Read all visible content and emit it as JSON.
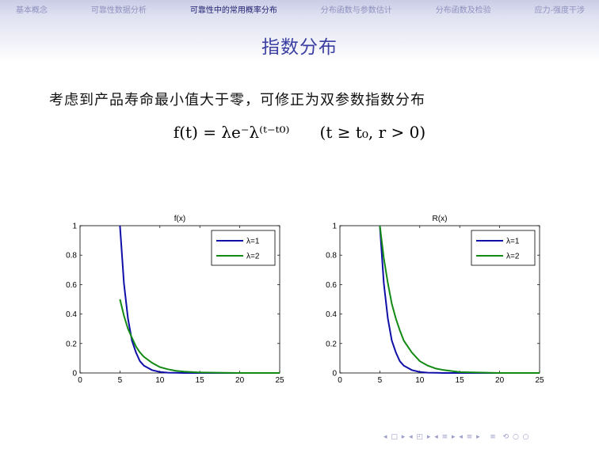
{
  "nav": {
    "items": [
      {
        "label": "基本概念",
        "active": false
      },
      {
        "label": "可靠性数据分析",
        "active": false
      },
      {
        "label": "可靠性中的常用概率分布",
        "active": true
      },
      {
        "label": "分布函数与参数估计",
        "active": false
      },
      {
        "label": "分布函数及检验",
        "active": false
      },
      {
        "label": "应力-强度干涉",
        "active": false
      }
    ]
  },
  "frame": {
    "title": "指数分布",
    "text": "考虑到产品寿命最小值大于零，可修正为双参数指数分布",
    "formula": "f(t) = λe⁻λ⁽ᵗ⁻ᵗ⁰⁾      (t ≥ t₀, r > 0)"
  },
  "colors": {
    "series1": "#1010a8",
    "series2": "#138a13",
    "accent": "#3c3fa2"
  },
  "chart_data": [
    {
      "type": "line",
      "title": "f(x)",
      "xlim": [
        0,
        25
      ],
      "ylim": [
        0,
        1
      ],
      "xticks": [
        0,
        5,
        10,
        15,
        20,
        25
      ],
      "yticks": [
        0,
        0.2,
        0.4,
        0.6,
        0.8,
        1
      ],
      "xtick_labels": [
        "0",
        "5",
        "10",
        "15",
        "20",
        "25"
      ],
      "ytick_labels": [
        "0",
        "0.2",
        "0.4",
        "0.6",
        "0.8",
        "1"
      ],
      "legend": "top-right",
      "x": [
        5,
        5.5,
        6,
        6.5,
        7,
        7.5,
        8,
        9,
        10,
        11,
        12,
        13,
        15,
        20,
        25
      ],
      "series": [
        {
          "name": "λ=1",
          "color": "#1010a8",
          "values": [
            1.0,
            0.61,
            0.37,
            0.22,
            0.14,
            0.08,
            0.05,
            0.02,
            0.007,
            0.002,
            0.001,
            0.0,
            0.0,
            0.0,
            0.0
          ]
        },
        {
          "name": "λ=2",
          "color": "#138a13",
          "values": [
            0.5,
            0.39,
            0.3,
            0.24,
            0.18,
            0.14,
            0.11,
            0.07,
            0.04,
            0.025,
            0.015,
            0.009,
            0.003,
            0.0,
            0.0
          ]
        }
      ]
    },
    {
      "type": "line",
      "title": "R(x)",
      "xlim": [
        0,
        25
      ],
      "ylim": [
        0,
        1
      ],
      "xticks": [
        0,
        5,
        10,
        15,
        20,
        25
      ],
      "yticks": [
        0,
        0.2,
        0.4,
        0.6,
        0.8,
        1
      ],
      "xtick_labels": [
        "0",
        "5",
        "10",
        "15",
        "20",
        "25"
      ],
      "ytick_labels": [
        "0",
        "0.2",
        "0.4",
        "0.6",
        "0.8",
        "1"
      ],
      "legend": "top-right",
      "x": [
        5,
        5.5,
        6,
        6.5,
        7,
        7.5,
        8,
        9,
        10,
        11,
        12,
        13,
        15,
        20,
        25
      ],
      "series": [
        {
          "name": "λ=1",
          "color": "#1010a8",
          "values": [
            1.0,
            0.61,
            0.37,
            0.22,
            0.14,
            0.08,
            0.05,
            0.02,
            0.007,
            0.002,
            0.001,
            0.0,
            0.0,
            0.0,
            0.0
          ]
        },
        {
          "name": "λ=2",
          "color": "#138a13",
          "values": [
            1.0,
            0.78,
            0.61,
            0.47,
            0.37,
            0.29,
            0.22,
            0.14,
            0.08,
            0.05,
            0.03,
            0.02,
            0.006,
            0.0,
            0.0
          ]
        }
      ]
    }
  ]
}
